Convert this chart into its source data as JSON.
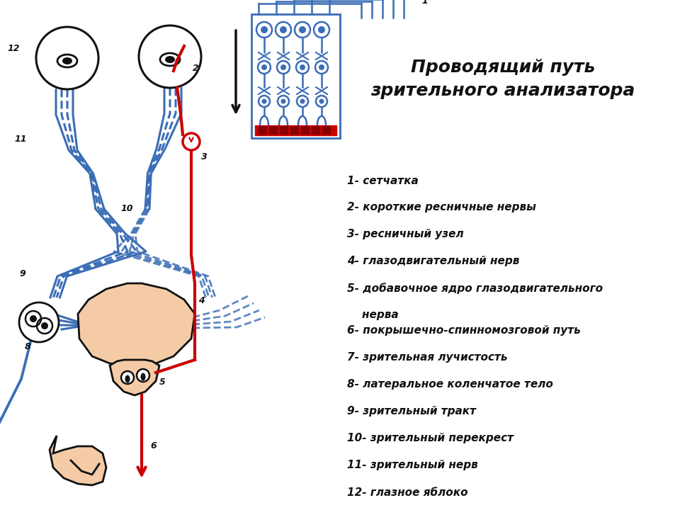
{
  "title_line1": "Проводящий путь",
  "title_line2": "зрительного анализатора",
  "title_fontsize": 18,
  "legend_items": [
    "1- сетчатка",
    "2- короткие ресничные нервы",
    "3- ресничный узел",
    "4- глазодвигательный нерв",
    "5- добавочное ядро глазодвигательного",
    "    нерва",
    "6- покрышечно-спинномозговой путь",
    "7- зрительная лучистость",
    "8- латеральное коленчатое тело",
    "9- зрительный тракт",
    "10- зрительный перекрест",
    "11- зрительный нерв",
    "12- глазное яблоко"
  ],
  "legend_fontsize": 11,
  "bg_color": "#ffffff",
  "blue": "#3A6DB5",
  "red": "#CC0000",
  "peach": "#F5CBA7",
  "dark": "#111111"
}
